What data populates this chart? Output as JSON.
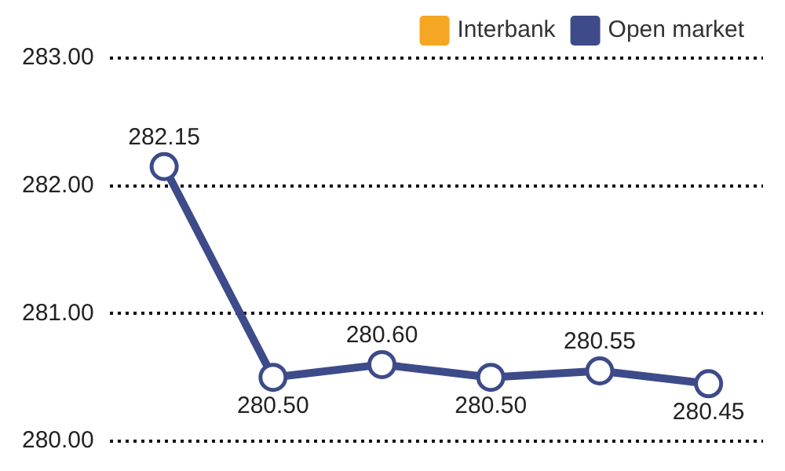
{
  "chart_data": {
    "type": "line",
    "categories": [
      null,
      null,
      null,
      null,
      null,
      null
    ],
    "series": [
      {
        "name": "Interbank",
        "color": "#f5a623",
        "values": [
          null,
          null,
          null,
          null,
          null,
          null
        ]
      },
      {
        "name": "Open market",
        "color": "#3d4b8a",
        "values": [
          282.15,
          280.5,
          280.6,
          280.5,
          280.55,
          280.45
        ],
        "value_labels": [
          "282.15",
          "280.50",
          "280.60",
          "280.50",
          "280.55",
          "280.45"
        ]
      }
    ],
    "ylim": [
      280,
      283
    ],
    "yticks": [
      {
        "value": 280,
        "label": "280.00"
      },
      {
        "value": 281,
        "label": "281.00"
      },
      {
        "value": 282,
        "label": "282.00"
      },
      {
        "value": 283,
        "label": "283.00"
      }
    ],
    "grid": "y",
    "legend": "top right",
    "marker": "circle",
    "line_style": "solid",
    "tick_labels": "y"
  }
}
